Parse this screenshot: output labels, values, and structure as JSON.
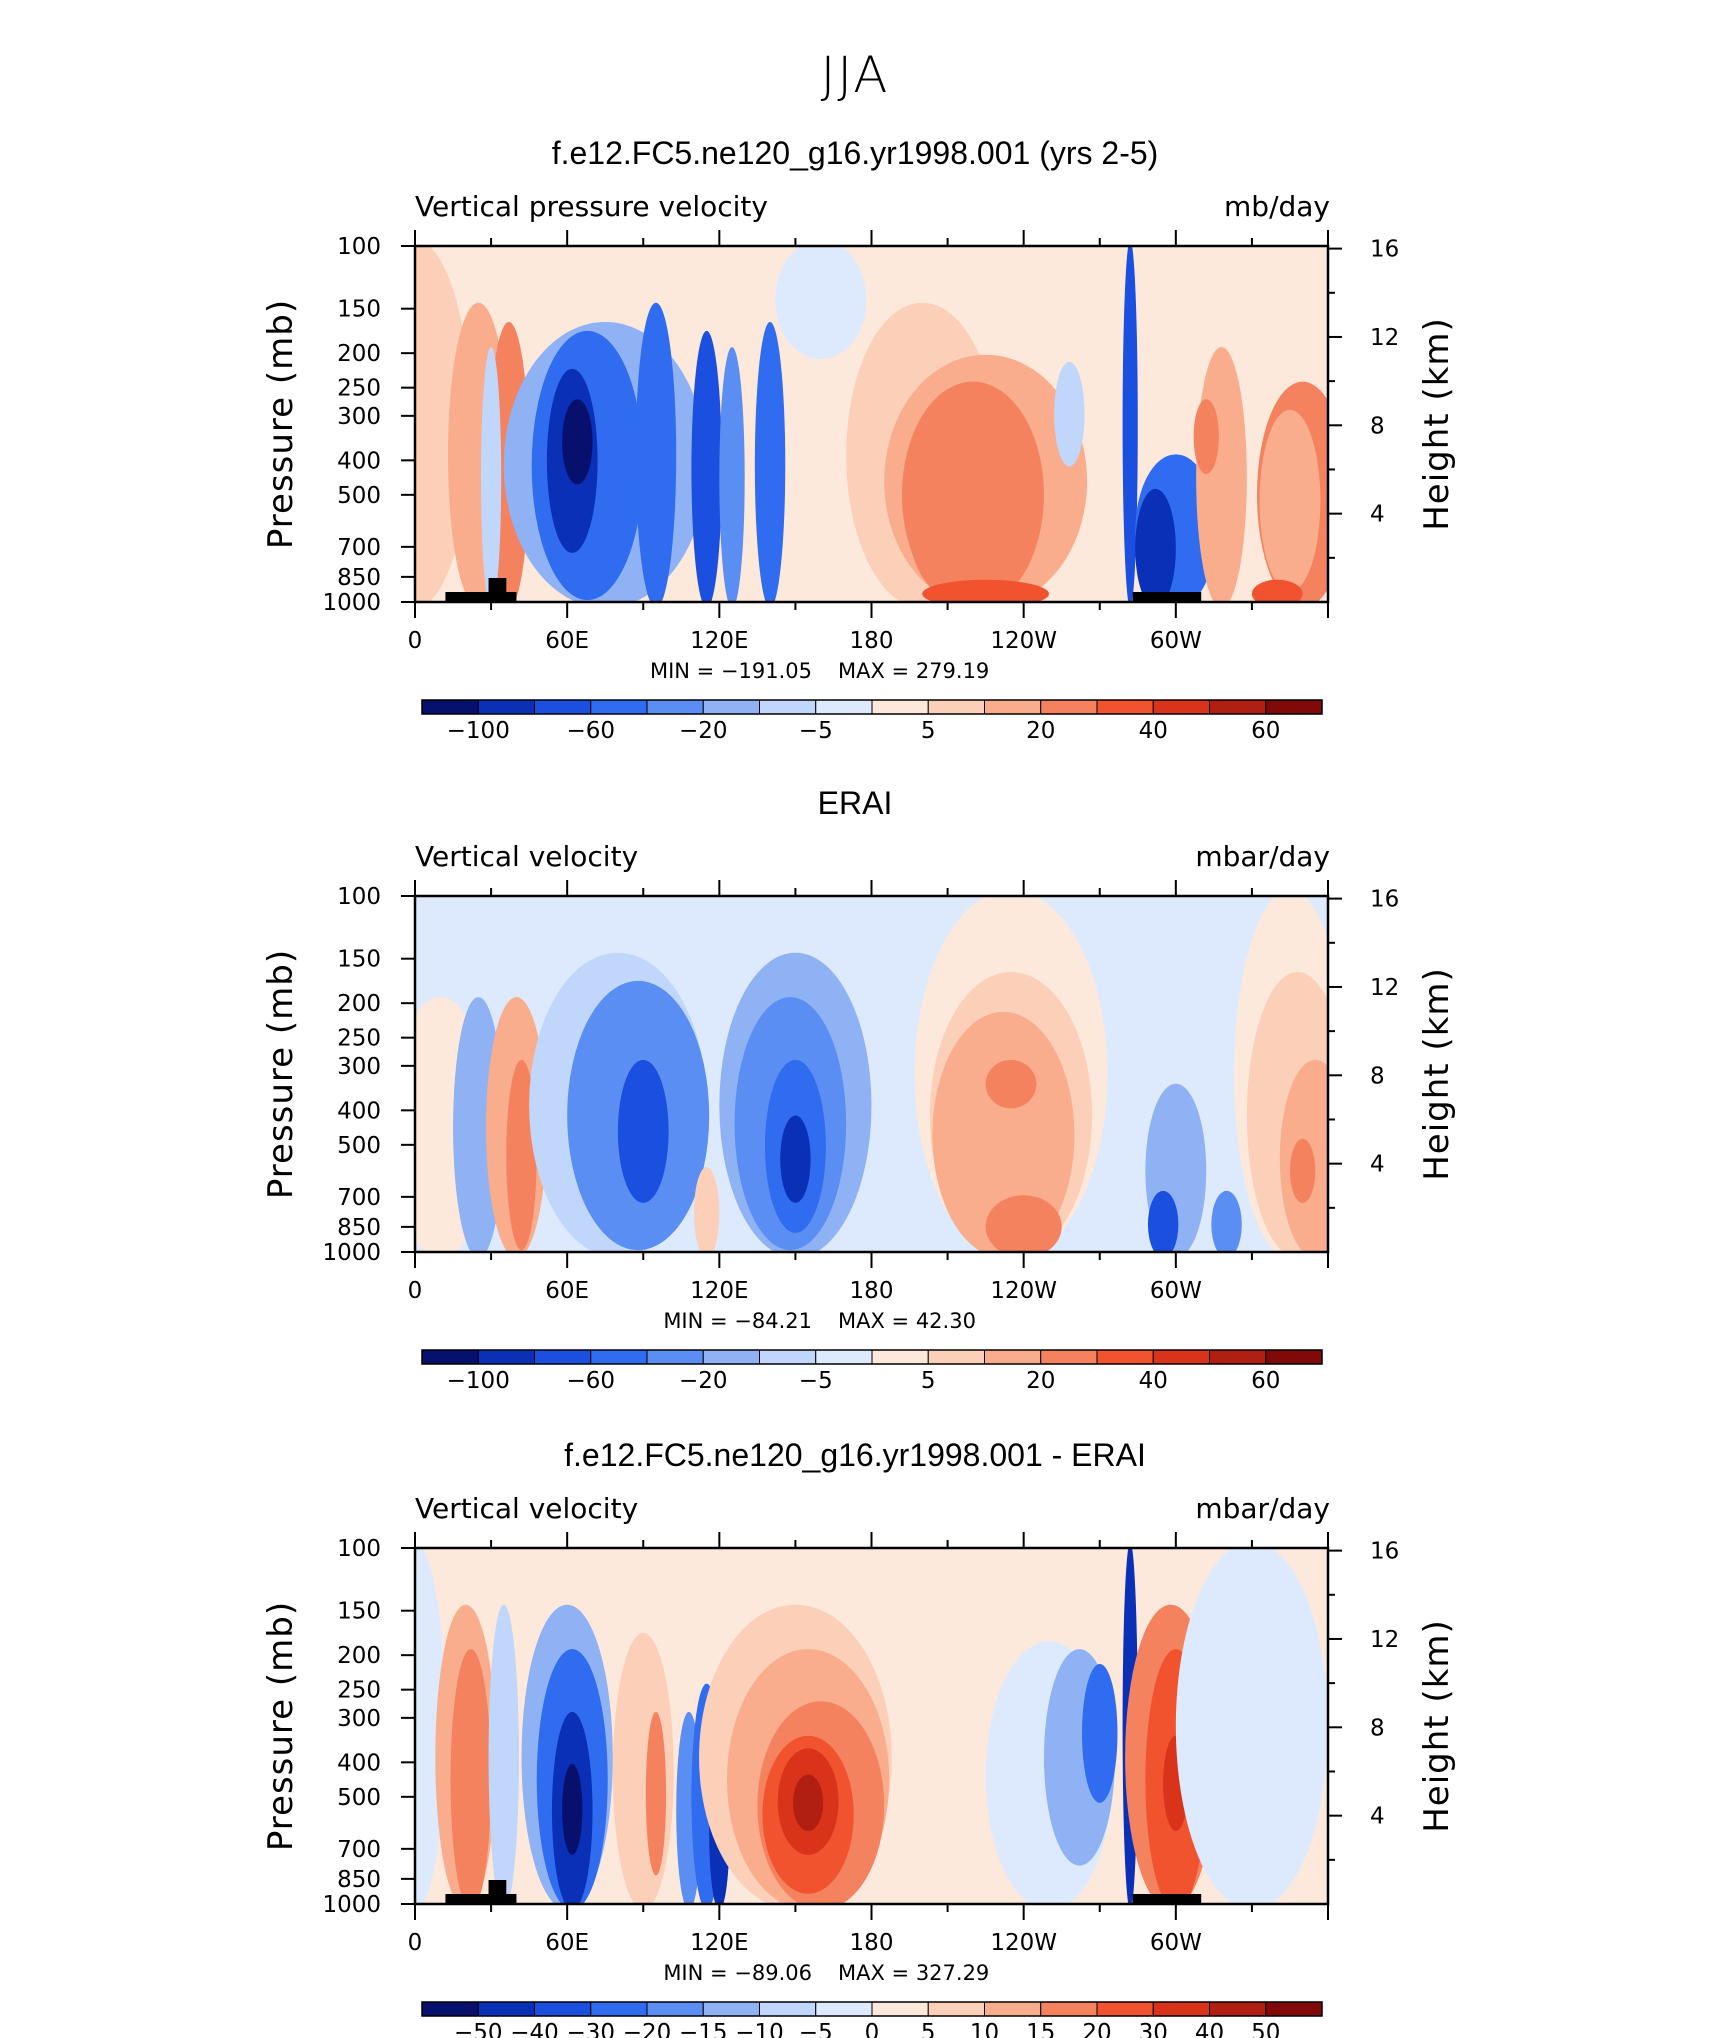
{
  "page_title": "JJA",
  "colors": {
    "blues": [
      "#08106d",
      "#0a30b8",
      "#1a4fe0",
      "#2f6cf0",
      "#5a8ef2",
      "#8fb2f5",
      "#c0d6fa",
      "#ddeafd"
    ],
    "reds": [
      "#fde9dc",
      "#fcd0b8",
      "#f9ad8c",
      "#f5825e",
      "#f0532e",
      "#d9341a",
      "#b01f12",
      "#800a0a"
    ]
  },
  "chart_data": [
    {
      "type": "contour",
      "title": "f.e12.FC5.ne120_g16.yr1998.001 (yrs 2-5)",
      "variable_label": "Vertical pressure velocity",
      "units_label": "mb/day",
      "xlabel": "",
      "ylabel": "Pressure (mb)",
      "y2label": "Height (km)",
      "x_ticks": [
        "0",
        "60E",
        "120E",
        "180",
        "120W",
        "60W"
      ],
      "y_ticks": [
        "100",
        "150",
        "200",
        "250",
        "300",
        "400",
        "500",
        "700",
        "850",
        "1000"
      ],
      "y2_ticks": [
        "16",
        "12",
        "8",
        "4"
      ],
      "min_label": "MIN = −191.05",
      "max_label": "MAX = 279.19",
      "colorbar_labels": [
        "−100",
        "−60",
        "−20",
        "−5",
        "5",
        "20",
        "40",
        "60"
      ]
    },
    {
      "type": "contour",
      "title": "ERAI",
      "variable_label": "Vertical velocity",
      "units_label": "mbar/day",
      "xlabel": "",
      "ylabel": "Pressure (mb)",
      "y2label": "Height (km)",
      "x_ticks": [
        "0",
        "60E",
        "120E",
        "180",
        "120W",
        "60W"
      ],
      "y_ticks": [
        "100",
        "150",
        "200",
        "250",
        "300",
        "400",
        "500",
        "700",
        "850",
        "1000"
      ],
      "y2_ticks": [
        "16",
        "12",
        "8",
        "4"
      ],
      "min_label": "MIN = −84.21",
      "max_label": "MAX = 42.30",
      "colorbar_labels": [
        "−100",
        "−60",
        "−20",
        "−5",
        "5",
        "20",
        "40",
        "60"
      ]
    },
    {
      "type": "contour",
      "title": "f.e12.FC5.ne120_g16.yr1998.001 - ERAI",
      "variable_label": "Vertical velocity",
      "units_label": "mbar/day",
      "xlabel": "",
      "ylabel": "Pressure (mb)",
      "y2label": "Height (km)",
      "x_ticks": [
        "0",
        "60E",
        "120E",
        "180",
        "120W",
        "60W"
      ],
      "y_ticks": [
        "100",
        "150",
        "200",
        "250",
        "300",
        "400",
        "500",
        "700",
        "850",
        "1000"
      ],
      "y2_ticks": [
        "16",
        "12",
        "8",
        "4"
      ],
      "min_label": "MIN = −89.06",
      "max_label": "MAX = 327.29",
      "colorbar_labels": [
        "−50",
        "−40",
        "−30",
        "−20",
        "−15",
        "−10",
        "−5",
        "0",
        "5",
        "10",
        "15",
        "20",
        "30",
        "40",
        "50"
      ]
    }
  ]
}
